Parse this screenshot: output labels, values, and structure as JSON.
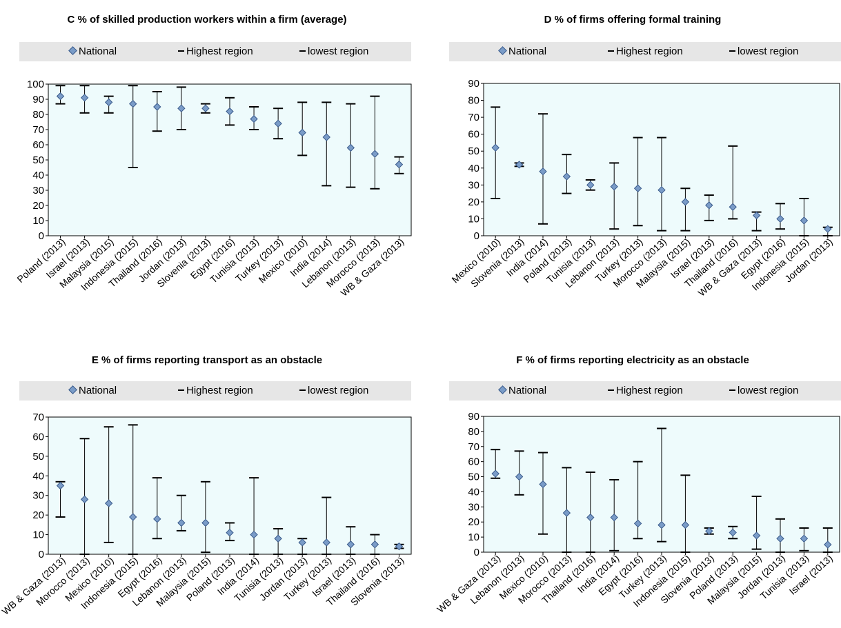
{
  "chart_data": [
    {
      "id": "C",
      "type": "error-range",
      "title": "C % of skilled production workers within a firm  (average)",
      "legend": [
        "National",
        "Highest region",
        "lowest region"
      ],
      "ylim": [
        0,
        100
      ],
      "yticks": [
        0,
        10,
        20,
        30,
        40,
        50,
        60,
        70,
        80,
        90,
        100
      ],
      "categories": [
        "Poland (2013)",
        "Israel (2013)",
        "Malaysia (2015)",
        "Indonesia (2015)",
        "Thailand (2016)",
        "Jordan (2013)",
        "Slovenia (2013)",
        "Egypt (2016)",
        "Tunisia (2013)",
        "Turkey (2013)",
        "Mexico (2010)",
        "India (2014)",
        "Lebanon (2013)",
        "Morocco (2013)",
        "WB & Gaza (2013)"
      ],
      "national": [
        92,
        91,
        88,
        87,
        85,
        84,
        84,
        82,
        77,
        74,
        68,
        65,
        58,
        54,
        47
      ],
      "highest": [
        99,
        99,
        92,
        99,
        95,
        98,
        87,
        91,
        85,
        84,
        88,
        88,
        87,
        92,
        52
      ],
      "lowest": [
        87,
        81,
        81,
        45,
        69,
        70,
        81,
        73,
        70,
        64,
        53,
        33,
        32,
        31,
        41
      ]
    },
    {
      "id": "D",
      "type": "error-range",
      "title": "D % of firms offering  formal training",
      "legend": [
        "National",
        "Highest region",
        "lowest region"
      ],
      "ylim": [
        0,
        90
      ],
      "yticks": [
        0,
        10,
        20,
        30,
        40,
        50,
        60,
        70,
        80,
        90
      ],
      "categories": [
        "Mexico (2010)",
        "Slovenia (2013)",
        "India (2014)",
        "Poland (2013)",
        "Tunisia (2013)",
        "Lebanon (2013)",
        "Turkey (2013)",
        "Morocco (2013)",
        "Malaysia (2015)",
        "Israel (2013)",
        "Thailand (2016)",
        "WB & Gaza (2013)",
        "Egypt (2016)",
        "Indonesia (2015)",
        "Jordan (2013)"
      ],
      "national": [
        52,
        42,
        38,
        35,
        30,
        29,
        28,
        27,
        20,
        18,
        17,
        12,
        10,
        9,
        4
      ],
      "highest": [
        76,
        43,
        72,
        48,
        33,
        43,
        58,
        58,
        28,
        24,
        53,
        14,
        19,
        22,
        5
      ],
      "lowest": [
        22,
        41,
        7,
        25,
        27,
        4,
        6,
        3,
        3,
        9,
        10,
        3,
        4,
        0,
        0
      ]
    },
    {
      "id": "E",
      "type": "error-range",
      "title": "E % of firms reporting transport as an obstacle",
      "legend": [
        "National",
        "Highest region",
        "lowest region"
      ],
      "ylim": [
        0,
        70
      ],
      "yticks": [
        0,
        10,
        20,
        30,
        40,
        50,
        60,
        70
      ],
      "categories": [
        "WB & Gaza (2013)",
        "Morocco (2013)",
        "Mexico (2010)",
        "Indonesia (2015)",
        "Egypt (2016)",
        "Lebanon (2013)",
        "Malaysia (2015)",
        "Poland (2013)",
        "India (2014)",
        "Tunisia (2013)",
        "Jordan (2013)",
        "Turkey (2013)",
        "Israel (2013)",
        "Thailand (2016)",
        "Slovenia (2013)"
      ],
      "national": [
        35,
        28,
        26,
        19,
        18,
        16,
        16,
        11,
        10,
        8,
        6,
        6,
        5,
        5,
        4
      ],
      "highest": [
        37,
        59,
        65,
        66,
        39,
        30,
        37,
        16,
        39,
        13,
        8,
        29,
        14,
        10,
        5
      ],
      "lowest": [
        19,
        0,
        6,
        0,
        8,
        12,
        1,
        7,
        0,
        0,
        0,
        0,
        0,
        0,
        3
      ]
    },
    {
      "id": "F",
      "type": "error-range",
      "title": "F % of  firms reporting electricity as an obstacle",
      "legend": [
        "National",
        "Highest region",
        "lowest region"
      ],
      "ylim": [
        0,
        90
      ],
      "yticks": [
        0,
        10,
        20,
        30,
        40,
        50,
        60,
        70,
        80,
        90
      ],
      "categories": [
        "WB & Gaza (2013)",
        "Lebanon (2013)",
        "Mexico (2010)",
        "Morocco (2013)",
        "Thailand (2016)",
        "India (2014)",
        "Egypt (2016)",
        "Turkey (2013)",
        "Indonesia (2015)",
        "Slovenia (2013)",
        "Poland (2013)",
        "Malaysia (2015)",
        "Jordan (2013)",
        "Tunisia (2013)",
        "Israel (2013)"
      ],
      "national": [
        52,
        50,
        45,
        26,
        23,
        23,
        19,
        18,
        18,
        14,
        13,
        11,
        9,
        9,
        5
      ],
      "highest": [
        68,
        67,
        66,
        56,
        53,
        48,
        60,
        82,
        51,
        16,
        17,
        37,
        22,
        16,
        16
      ],
      "lowest": [
        49,
        38,
        12,
        0,
        0,
        1,
        9,
        7,
        0,
        12,
        9,
        2,
        0,
        1,
        0
      ]
    }
  ]
}
